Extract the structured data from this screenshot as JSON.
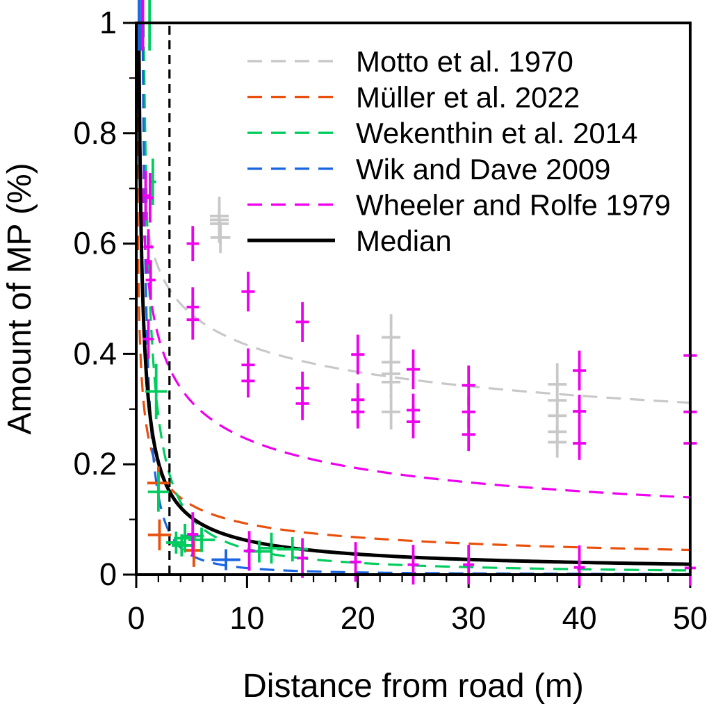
{
  "chart_data": {
    "type": "scatter",
    "title": "",
    "xlabel": "Distance from road (m)",
    "ylabel": "Amount of MP (%)",
    "xlim": [
      0,
      50
    ],
    "ylim": [
      0,
      1
    ],
    "x_tick_labels": [
      "0",
      "10",
      "20",
      "30",
      "40",
      "50"
    ],
    "x_major_ticks": [
      0,
      10,
      20,
      30,
      40,
      50
    ],
    "x_minor_step": 2,
    "y_tick_labels": [
      "0",
      "0.2",
      "0.4",
      "0.6",
      "0.8",
      "1"
    ],
    "y_major_ticks": [
      0,
      0.2,
      0.4,
      0.6,
      0.8,
      1
    ],
    "y_minor_step": 0.1,
    "grid": false,
    "legend_position": "top-right-inside",
    "frame": true,
    "reference_line": {
      "x": 3,
      "color": "#000000",
      "style": "dashed"
    },
    "series": [
      {
        "name": "Motto et al. 1970",
        "color": "#C8C8C8",
        "line_style": "dashed",
        "fit_power_law": {
          "a": 0.63,
          "b": -0.18
        },
        "points": [
          [
            7.5,
            0.65,
            0.85,
            0.02
          ],
          [
            7.5,
            0.643,
            0.85,
            0.042
          ],
          [
            7.5,
            0.636,
            0.85,
            0.02
          ],
          [
            7.6,
            0.611,
            0.9,
            0.028
          ],
          [
            23,
            0.43,
            0.85,
            0.042
          ],
          [
            23,
            0.385,
            0.85,
            0.03
          ],
          [
            23,
            0.364,
            0.85,
            0.03
          ],
          [
            23,
            0.349,
            0.85,
            0.03
          ],
          [
            23,
            0.295,
            0.85,
            0.032
          ],
          [
            38,
            0.345,
            0.85,
            0.038
          ],
          [
            38,
            0.316,
            0.85,
            0.03
          ],
          [
            38,
            0.288,
            0.85,
            0.03
          ],
          [
            38,
            0.259,
            0.85,
            0.03
          ],
          [
            38,
            0.24,
            0.85,
            0.028
          ]
        ]
      },
      {
        "name": "Müller et al. 2022",
        "color": "#E8500C",
        "line_style": "dashed",
        "fit_power_law": {
          "a": 0.26,
          "b": -0.45
        },
        "points": [
          [
            2.0,
            0.166,
            1.0,
            0.03
          ],
          [
            2.1,
            0.072,
            1.05,
            0.028
          ],
          [
            5.2,
            0.044,
            0.7,
            0.03
          ]
        ]
      },
      {
        "name": "Wekenthin et al. 2014",
        "color": "#00CC5E",
        "line_style": "dashed",
        "fit_power_law": {
          "a": 0.63,
          "b": -1.13
        },
        "points": [
          [
            1.2,
            1.0,
            0.15,
            0.05
          ],
          [
            1.5,
            0.712,
            0.3,
            0.042
          ],
          [
            1.8,
            0.332,
            1.0,
            0.05
          ],
          [
            2.0,
            0.15,
            0.95,
            0.036
          ],
          [
            3.6,
            0.058,
            0.9,
            0.02
          ],
          [
            4.1,
            0.053,
            0.9,
            0.02
          ],
          [
            4.4,
            0.066,
            1.0,
            0.026
          ],
          [
            5.1,
            0.07,
            1.0,
            0.026
          ],
          [
            5.9,
            0.063,
            1.2,
            0.022
          ],
          [
            11.1,
            0.042,
            1.2,
            0.02
          ],
          [
            12.2,
            0.048,
            1.1,
            0.028
          ],
          [
            14.1,
            0.046,
            1.4,
            0.022
          ]
        ]
      },
      {
        "name": "Wik and Dave 2009",
        "color": "#1B66E0",
        "line_style": "dashed",
        "fit_power_law": {
          "a": 0.42,
          "b": -1.55
        },
        "points": [
          [
            0.25,
            1.0,
            0.12,
            0.05
          ],
          [
            0.5,
            1.0,
            0.12,
            0.05
          ],
          [
            8.1,
            0.027,
            1.3,
            0.019
          ]
        ]
      },
      {
        "name": "Wheeler and Rolfe 1979",
        "color": "#EE00EE",
        "line_style": "dashed",
        "fit_power_law": {
          "a": 0.55,
          "b": -0.35
        },
        "points": [
          [
            0.6,
            1.0,
            0.12,
            0.05
          ],
          [
            0.85,
            0.687,
            0.3,
            0.045
          ],
          [
            1.25,
            0.683,
            0.3,
            0.045
          ],
          [
            1.1,
            0.594,
            0.45,
            0.032
          ],
          [
            1.3,
            0.534,
            0.45,
            0.036
          ],
          [
            1.1,
            0.427,
            0.5,
            0.036
          ],
          [
            5.1,
            0.6,
            0.55,
            0.032
          ],
          [
            5.1,
            0.485,
            0.55,
            0.036
          ],
          [
            5.1,
            0.462,
            0.55,
            0.036
          ],
          [
            10.1,
            0.513,
            0.6,
            0.036
          ],
          [
            10.1,
            0.38,
            0.6,
            0.03
          ],
          [
            10.1,
            0.351,
            0.6,
            0.03
          ],
          [
            15.0,
            0.458,
            0.6,
            0.036
          ],
          [
            15.0,
            0.338,
            0.6,
            0.03
          ],
          [
            15.0,
            0.31,
            0.6,
            0.03
          ],
          [
            20.0,
            0.399,
            0.6,
            0.036
          ],
          [
            20.0,
            0.317,
            0.6,
            0.03
          ],
          [
            20.0,
            0.295,
            0.6,
            0.03
          ],
          [
            25.0,
            0.372,
            0.6,
            0.036
          ],
          [
            25.0,
            0.298,
            0.6,
            0.03
          ],
          [
            25.0,
            0.277,
            0.6,
            0.03
          ],
          [
            30.0,
            0.343,
            0.6,
            0.036
          ],
          [
            30.0,
            0.295,
            0.6,
            0.03
          ],
          [
            30.0,
            0.254,
            0.6,
            0.03
          ],
          [
            40.0,
            0.37,
            0.6,
            0.036
          ],
          [
            40.0,
            0.296,
            0.6,
            0.03
          ],
          [
            40.0,
            0.238,
            0.6,
            0.03
          ],
          [
            50.0,
            0.397,
            0.6,
            0.036
          ],
          [
            50.0,
            0.295,
            0.6,
            0.03
          ],
          [
            50.0,
            0.238,
            0.6,
            0.03
          ],
          [
            5.1,
            0.073,
            0.5,
            0.04
          ],
          [
            10.2,
            0.043,
            0.5,
            0.036
          ],
          [
            15.0,
            0.03,
            0.5,
            0.036
          ],
          [
            19.8,
            0.023,
            0.5,
            0.036
          ],
          [
            25.0,
            0.018,
            0.5,
            0.036
          ],
          [
            30.0,
            0.018,
            0.5,
            0.036
          ],
          [
            40.0,
            0.013,
            0.5,
            0.04
          ],
          [
            50.0,
            0.012,
            0.5,
            0.036
          ]
        ]
      },
      {
        "name": "Median",
        "color": "#000000",
        "line_style": "solid",
        "fit_power_law": {
          "a": 0.34,
          "b": -0.74
        },
        "points": []
      }
    ]
  }
}
